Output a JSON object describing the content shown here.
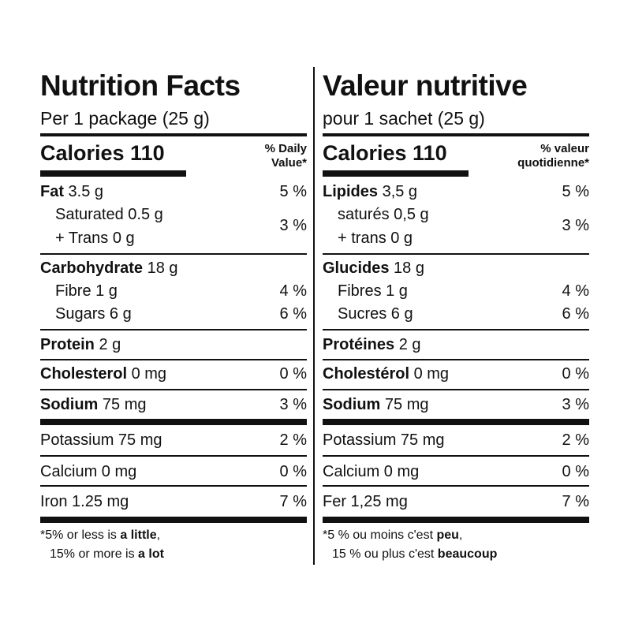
{
  "columns": [
    {
      "id": "en",
      "title": "Nutrition Facts",
      "serving": "Per 1 package (25 g)",
      "calories": "Calories 110",
      "dv_heading": [
        "% Daily",
        "Value*"
      ],
      "rows": [
        {
          "bold": "Fat",
          "text": " 3.5 g",
          "pct": "5 %"
        },
        {
          "bold": "",
          "text": "Saturated 0.5 g",
          "pct": "",
          "sub": true
        },
        {
          "bold": "",
          "text": "+ Trans 0 g",
          "pct": "",
          "sub": true
        },
        {
          "bold": "Carbohydrate",
          "text": " 18 g",
          "pct": ""
        },
        {
          "bold": "",
          "text": "Fibre 1 g",
          "pct": "4 %",
          "sub": true
        },
        {
          "bold": "",
          "text": "Sugars 6 g",
          "pct": "6 %",
          "sub": true
        },
        {
          "bold": "Protein",
          "text": " 2 g",
          "pct": ""
        },
        {
          "bold": "Cholesterol",
          "text": " 0 mg",
          "pct": "0 %"
        },
        {
          "bold": "Sodium",
          "text": " 75 mg",
          "pct": "3 %"
        },
        {
          "bold": "",
          "text": "Potassium 75 mg",
          "pct": "2 %"
        },
        {
          "bold": "",
          "text": "Calcium 0 mg",
          "pct": "0 %"
        },
        {
          "bold": "",
          "text": "Iron 1.25 mg",
          "pct": "7 %"
        }
      ],
      "sat_trans_pct": "3 %",
      "footnote": {
        "l1a": "*5% or less is ",
        "l1b": "a little",
        "l1c": ",",
        "l2a": "15% or more is ",
        "l2b": "a lot"
      }
    },
    {
      "id": "fr",
      "title": "Valeur nutritive",
      "serving": "pour 1 sachet (25 g)",
      "calories": "Calories 110",
      "dv_heading": [
        "% valeur",
        "quotidienne*"
      ],
      "rows": [
        {
          "bold": "Lipides",
          "text": " 3,5 g",
          "pct": "5 %"
        },
        {
          "bold": "",
          "text": "saturés 0,5 g",
          "pct": "",
          "sub": true
        },
        {
          "bold": "",
          "text": "+ trans 0 g",
          "pct": "",
          "sub": true
        },
        {
          "bold": "Glucides",
          "text": " 18 g",
          "pct": ""
        },
        {
          "bold": "",
          "text": "Fibres 1 g",
          "pct": "4 %",
          "sub": true
        },
        {
          "bold": "",
          "text": "Sucres 6 g",
          "pct": "6 %",
          "sub": true
        },
        {
          "bold": "Protéines",
          "text": " 2 g",
          "pct": ""
        },
        {
          "bold": "Cholestérol",
          "text": " 0 mg",
          "pct": "0 %"
        },
        {
          "bold": "Sodium",
          "text": " 75 mg",
          "pct": "3 %"
        },
        {
          "bold": "",
          "text": "Potassium 75 mg",
          "pct": "2 %"
        },
        {
          "bold": "",
          "text": "Calcium 0 mg",
          "pct": "0 %"
        },
        {
          "bold": "",
          "text": "Fer 1,25 mg",
          "pct": "7 %"
        }
      ],
      "sat_trans_pct": "3 %",
      "footnote": {
        "l1a": "*5 % ou moins c'est ",
        "l1b": "peu",
        "l1c": ",",
        "l2a": "15 % ou plus c'est ",
        "l2b": "beaucoup"
      }
    }
  ]
}
